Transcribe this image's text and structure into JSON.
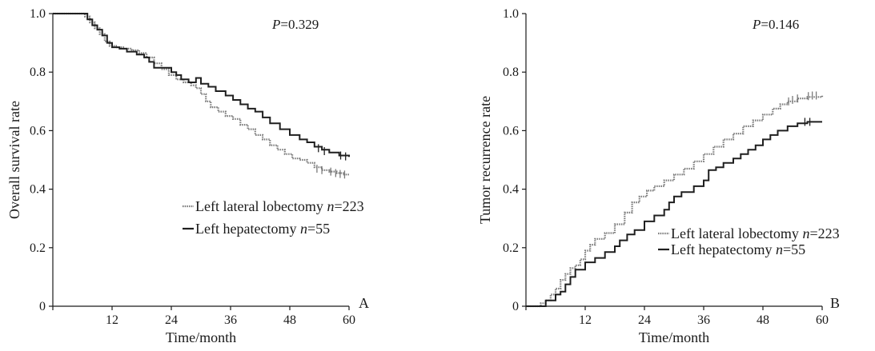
{
  "chart_data": [
    {
      "type": "line",
      "subtype": "kaplan-meier",
      "panel": "A",
      "annotation": {
        "prefix": "P",
        "rest": "=0.329"
      },
      "xlabel": "Time/month",
      "ylabel": "Overall survival rate",
      "xlim": [
        0,
        60
      ],
      "ylim": [
        0,
        1.0
      ],
      "xticks": [
        0,
        12,
        24,
        36,
        48,
        60
      ],
      "xtick_labels": [
        "",
        "12",
        "24",
        "36",
        "48",
        "60"
      ],
      "yticks": [
        0,
        0.2,
        0.4,
        0.6,
        0.8,
        1.0
      ],
      "ytick_labels": [
        "0",
        "0.2",
        "0.4",
        "0.6",
        "0.8",
        "1.0"
      ],
      "legend_position": "center-right",
      "series": [
        {
          "label_text": "Left lateral lobectomy",
          "label_n": "n",
          "label_count": "=223",
          "style": "dotted",
          "color": "#7a7a7a",
          "points": [
            [
              0,
              1.0
            ],
            [
              5.5,
              1.0
            ],
            [
              6.5,
              0.99
            ],
            [
              7.5,
              0.97
            ],
            [
              8.5,
              0.95
            ],
            [
              9.5,
              0.93
            ],
            [
              10.5,
              0.905
            ],
            [
              11.5,
              0.89
            ],
            [
              13,
              0.885
            ],
            [
              14.5,
              0.88
            ],
            [
              16,
              0.875
            ],
            [
              17.5,
              0.865
            ],
            [
              19,
              0.85
            ],
            [
              20.5,
              0.83
            ],
            [
              22,
              0.81
            ],
            [
              23.5,
              0.79
            ],
            [
              25,
              0.775
            ],
            [
              26.5,
              0.765
            ],
            [
              28,
              0.755
            ],
            [
              29,
              0.745
            ],
            [
              30,
              0.725
            ],
            [
              31,
              0.7
            ],
            [
              32,
              0.68
            ],
            [
              33.5,
              0.665
            ],
            [
              35,
              0.65
            ],
            [
              36.5,
              0.64
            ],
            [
              38,
              0.62
            ],
            [
              39.5,
              0.605
            ],
            [
              41,
              0.585
            ],
            [
              42.5,
              0.57
            ],
            [
              44,
              0.55
            ],
            [
              45.5,
              0.535
            ],
            [
              47,
              0.52
            ],
            [
              48.5,
              0.505
            ],
            [
              50,
              0.5
            ],
            [
              51.5,
              0.49
            ],
            [
              53,
              0.475
            ],
            [
              54.5,
              0.465
            ],
            [
              56,
              0.46
            ],
            [
              57.5,
              0.455
            ],
            [
              59,
              0.45
            ],
            [
              60,
              0.45
            ]
          ],
          "censored": [
            [
              53.5,
              0.47
            ],
            [
              54.5,
              0.465
            ],
            [
              56.3,
              0.46
            ],
            [
              57.3,
              0.455
            ],
            [
              58.2,
              0.452
            ],
            [
              59.1,
              0.45
            ]
          ]
        },
        {
          "label_text": "Left hepatectomy",
          "label_n": "n",
          "label_count": "=55",
          "style": "solid",
          "color": "#1f1f1f",
          "points": [
            [
              0,
              1.0
            ],
            [
              6,
              1.0
            ],
            [
              7,
              0.98
            ],
            [
              8,
              0.96
            ],
            [
              9,
              0.945
            ],
            [
              10,
              0.925
            ],
            [
              11,
              0.9
            ],
            [
              12,
              0.885
            ],
            [
              13.5,
              0.88
            ],
            [
              15,
              0.87
            ],
            [
              17,
              0.86
            ],
            [
              18.5,
              0.85
            ],
            [
              19.5,
              0.835
            ],
            [
              20.5,
              0.815
            ],
            [
              22,
              0.815
            ],
            [
              24,
              0.8
            ],
            [
              25,
              0.79
            ],
            [
              26,
              0.775
            ],
            [
              27.5,
              0.765
            ],
            [
              29,
              0.78
            ],
            [
              30,
              0.76
            ],
            [
              31.5,
              0.75
            ],
            [
              33,
              0.735
            ],
            [
              35,
              0.72
            ],
            [
              36.5,
              0.705
            ],
            [
              38,
              0.69
            ],
            [
              39.5,
              0.675
            ],
            [
              41,
              0.665
            ],
            [
              42.5,
              0.645
            ],
            [
              44,
              0.625
            ],
            [
              46,
              0.605
            ],
            [
              48,
              0.585
            ],
            [
              50,
              0.57
            ],
            [
              51.5,
              0.56
            ],
            [
              53,
              0.545
            ],
            [
              54.5,
              0.535
            ],
            [
              56,
              0.525
            ],
            [
              58,
              0.515
            ],
            [
              60,
              0.51
            ]
          ],
          "censored": [
            [
              53.8,
              0.54
            ],
            [
              55,
              0.53
            ],
            [
              58.3,
              0.515
            ],
            [
              59.3,
              0.512
            ]
          ]
        }
      ]
    },
    {
      "type": "line",
      "subtype": "cumulative-incidence",
      "panel": "B",
      "annotation": {
        "prefix": "P",
        "rest": "=0.146"
      },
      "xlabel": "Time/month",
      "ylabel": "Tumor recurrence rate",
      "xlim": [
        0,
        60
      ],
      "ylim": [
        0,
        1.0
      ],
      "xticks": [
        0,
        12,
        24,
        36,
        48,
        60
      ],
      "xtick_labels": [
        "",
        "12",
        "24",
        "36",
        "48",
        "60"
      ],
      "yticks": [
        0,
        0.2,
        0.4,
        0.6,
        0.8,
        1.0
      ],
      "ytick_labels": [
        "0",
        "0.2",
        "0.4",
        "0.6",
        "0.8",
        "1.0"
      ],
      "legend_position": "lower-right",
      "series": [
        {
          "label_text": "Left lateral lobectomy",
          "label_n": "n",
          "label_count": "=223",
          "style": "dotted",
          "color": "#7a7a7a",
          "points": [
            [
              0,
              0
            ],
            [
              2,
              0
            ],
            [
              3,
              0.01
            ],
            [
              4,
              0.02
            ],
            [
              5,
              0.04
            ],
            [
              6,
              0.06
            ],
            [
              7,
              0.09
            ],
            [
              8,
              0.11
            ],
            [
              9,
              0.13
            ],
            [
              10,
              0.14
            ],
            [
              11,
              0.16
            ],
            [
              12,
              0.19
            ],
            [
              13,
              0.21
            ],
            [
              14,
              0.23
            ],
            [
              16,
              0.25
            ],
            [
              18,
              0.28
            ],
            [
              20,
              0.32
            ],
            [
              21.5,
              0.355
            ],
            [
              23,
              0.375
            ],
            [
              24.5,
              0.395
            ],
            [
              26,
              0.41
            ],
            [
              28,
              0.43
            ],
            [
              30,
              0.45
            ],
            [
              32,
              0.47
            ],
            [
              34,
              0.495
            ],
            [
              36,
              0.52
            ],
            [
              38,
              0.545
            ],
            [
              40,
              0.57
            ],
            [
              42,
              0.59
            ],
            [
              44,
              0.615
            ],
            [
              46,
              0.635
            ],
            [
              48,
              0.655
            ],
            [
              50,
              0.675
            ],
            [
              51.5,
              0.69
            ],
            [
              53,
              0.7
            ],
            [
              55,
              0.71
            ],
            [
              57,
              0.715
            ],
            [
              60,
              0.72
            ]
          ],
          "censored": [
            [
              53.2,
              0.7
            ],
            [
              54,
              0.705
            ],
            [
              55,
              0.71
            ],
            [
              57.2,
              0.718
            ],
            [
              58,
              0.72
            ],
            [
              58.8,
              0.72
            ]
          ]
        },
        {
          "label_text": "Left hepatectomy",
          "label_n": "n",
          "label_count": "=55",
          "style": "solid",
          "color": "#1f1f1f",
          "points": [
            [
              0,
              0
            ],
            [
              3,
              0
            ],
            [
              4,
              0.02
            ],
            [
              5,
              0.02
            ],
            [
              6,
              0.04
            ],
            [
              7,
              0.05
            ],
            [
              8,
              0.075
            ],
            [
              9,
              0.1
            ],
            [
              10,
              0.125
            ],
            [
              11,
              0.125
            ],
            [
              12,
              0.15
            ],
            [
              13.5,
              0.15
            ],
            [
              14,
              0.165
            ],
            [
              16,
              0.185
            ],
            [
              18,
              0.205
            ],
            [
              19,
              0.225
            ],
            [
              20.5,
              0.245
            ],
            [
              22,
              0.26
            ],
            [
              24,
              0.29
            ],
            [
              26,
              0.31
            ],
            [
              28,
              0.33
            ],
            [
              29,
              0.355
            ],
            [
              30,
              0.375
            ],
            [
              31.5,
              0.39
            ],
            [
              33,
              0.39
            ],
            [
              34,
              0.41
            ],
            [
              36,
              0.43
            ],
            [
              37,
              0.465
            ],
            [
              38.5,
              0.475
            ],
            [
              40,
              0.49
            ],
            [
              42,
              0.505
            ],
            [
              43.5,
              0.52
            ],
            [
              45,
              0.535
            ],
            [
              46.5,
              0.55
            ],
            [
              48,
              0.57
            ],
            [
              49.5,
              0.585
            ],
            [
              51,
              0.6
            ],
            [
              53,
              0.615
            ],
            [
              55,
              0.625
            ],
            [
              57,
              0.63
            ],
            [
              60,
              0.63
            ]
          ],
          "censored": [
            [
              56.5,
              0.63
            ],
            [
              57.5,
              0.63
            ]
          ]
        }
      ]
    }
  ]
}
